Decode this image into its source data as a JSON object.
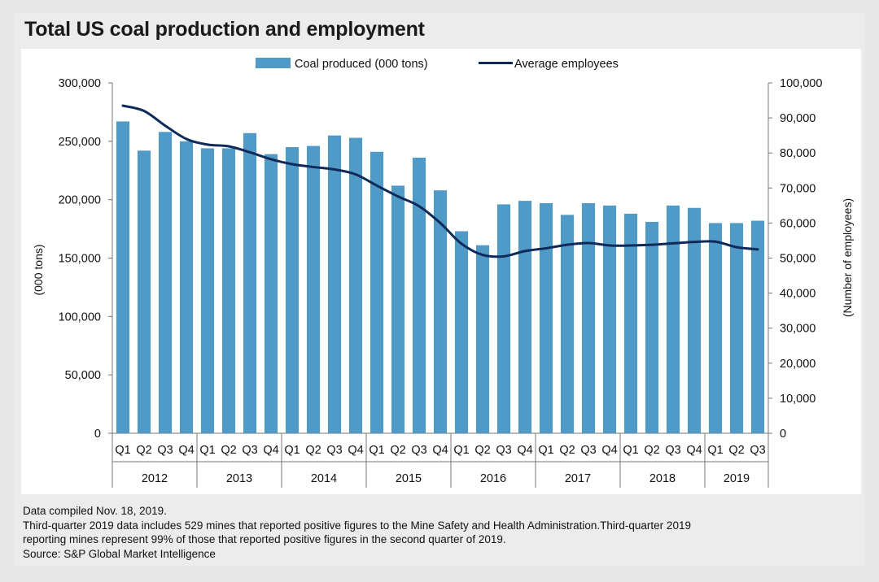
{
  "title": "Total US coal production and employment",
  "colors": {
    "bar": "#4f9ac6",
    "line": "#0d2a5a",
    "axis": "#777777",
    "background": "#ececec"
  },
  "chart_data": {
    "type": "bar+line",
    "quarters": [
      "Q1",
      "Q2",
      "Q3",
      "Q4",
      "Q1",
      "Q2",
      "Q3",
      "Q4",
      "Q1",
      "Q2",
      "Q3",
      "Q4",
      "Q1",
      "Q2",
      "Q3",
      "Q4",
      "Q1",
      "Q2",
      "Q3",
      "Q4",
      "Q1",
      "Q2",
      "Q3",
      "Q4",
      "Q1",
      "Q2",
      "Q3",
      "Q4",
      "Q1",
      "Q2",
      "Q3"
    ],
    "years": [
      {
        "label": "2012",
        "quarters": 4
      },
      {
        "label": "2013",
        "quarters": 4
      },
      {
        "label": "2014",
        "quarters": 4
      },
      {
        "label": "2015",
        "quarters": 4
      },
      {
        "label": "2016",
        "quarters": 4
      },
      {
        "label": "2017",
        "quarters": 4
      },
      {
        "label": "2018",
        "quarters": 4
      },
      {
        "label": "2019",
        "quarters": 3
      }
    ],
    "series": [
      {
        "name": "Coal produced (000 tons)",
        "kind": "bar",
        "axis": "left",
        "values": [
          267000,
          242000,
          258000,
          250000,
          244000,
          244000,
          257000,
          239000,
          245000,
          246000,
          255000,
          253000,
          241000,
          212000,
          236000,
          208000,
          173000,
          161000,
          196000,
          199000,
          197000,
          187000,
          197000,
          195000,
          188000,
          181000,
          195000,
          193000,
          180000,
          180000,
          182000
        ]
      },
      {
        "name": "Average employees",
        "kind": "line",
        "axis": "right",
        "values": [
          93500,
          92000,
          87800,
          84000,
          82400,
          81900,
          80200,
          78200,
          76800,
          76000,
          75300,
          73900,
          70700,
          67600,
          64800,
          60000,
          54100,
          50900,
          50500,
          52000,
          52800,
          53800,
          54300,
          53600,
          53600,
          53800,
          54200,
          54600,
          54700,
          53100,
          52500
        ]
      }
    ],
    "left_axis": {
      "title": "(000 tons)",
      "min": 0,
      "max": 300000,
      "ticks": [
        "0",
        "50,000",
        "100,000",
        "150,000",
        "200,000",
        "250,000",
        "300,000"
      ]
    },
    "right_axis": {
      "title": "(Number of employees)",
      "min": 0,
      "max": 100000,
      "ticks": [
        "0",
        "10,000",
        "20,000",
        "30,000",
        "40,000",
        "50,000",
        "60,000",
        "70,000",
        "80,000",
        "90,000",
        "100,000"
      ]
    },
    "legend": [
      "Coal produced (000 tons)",
      "Average employees"
    ],
    "legend_position": "top-center"
  },
  "notes": {
    "compiled": "Data compiled Nov. 18, 2019.",
    "line1": "Third-quarter 2019 data includes 529 mines that reported positive figures to the Mine Safety and Health Administration.Third-quarter 2019",
    "line2": "reporting mines represent 99% of those that reported positive figures in the second quarter of 2019.",
    "source": "Source: S&P Global Market Intelligence"
  }
}
